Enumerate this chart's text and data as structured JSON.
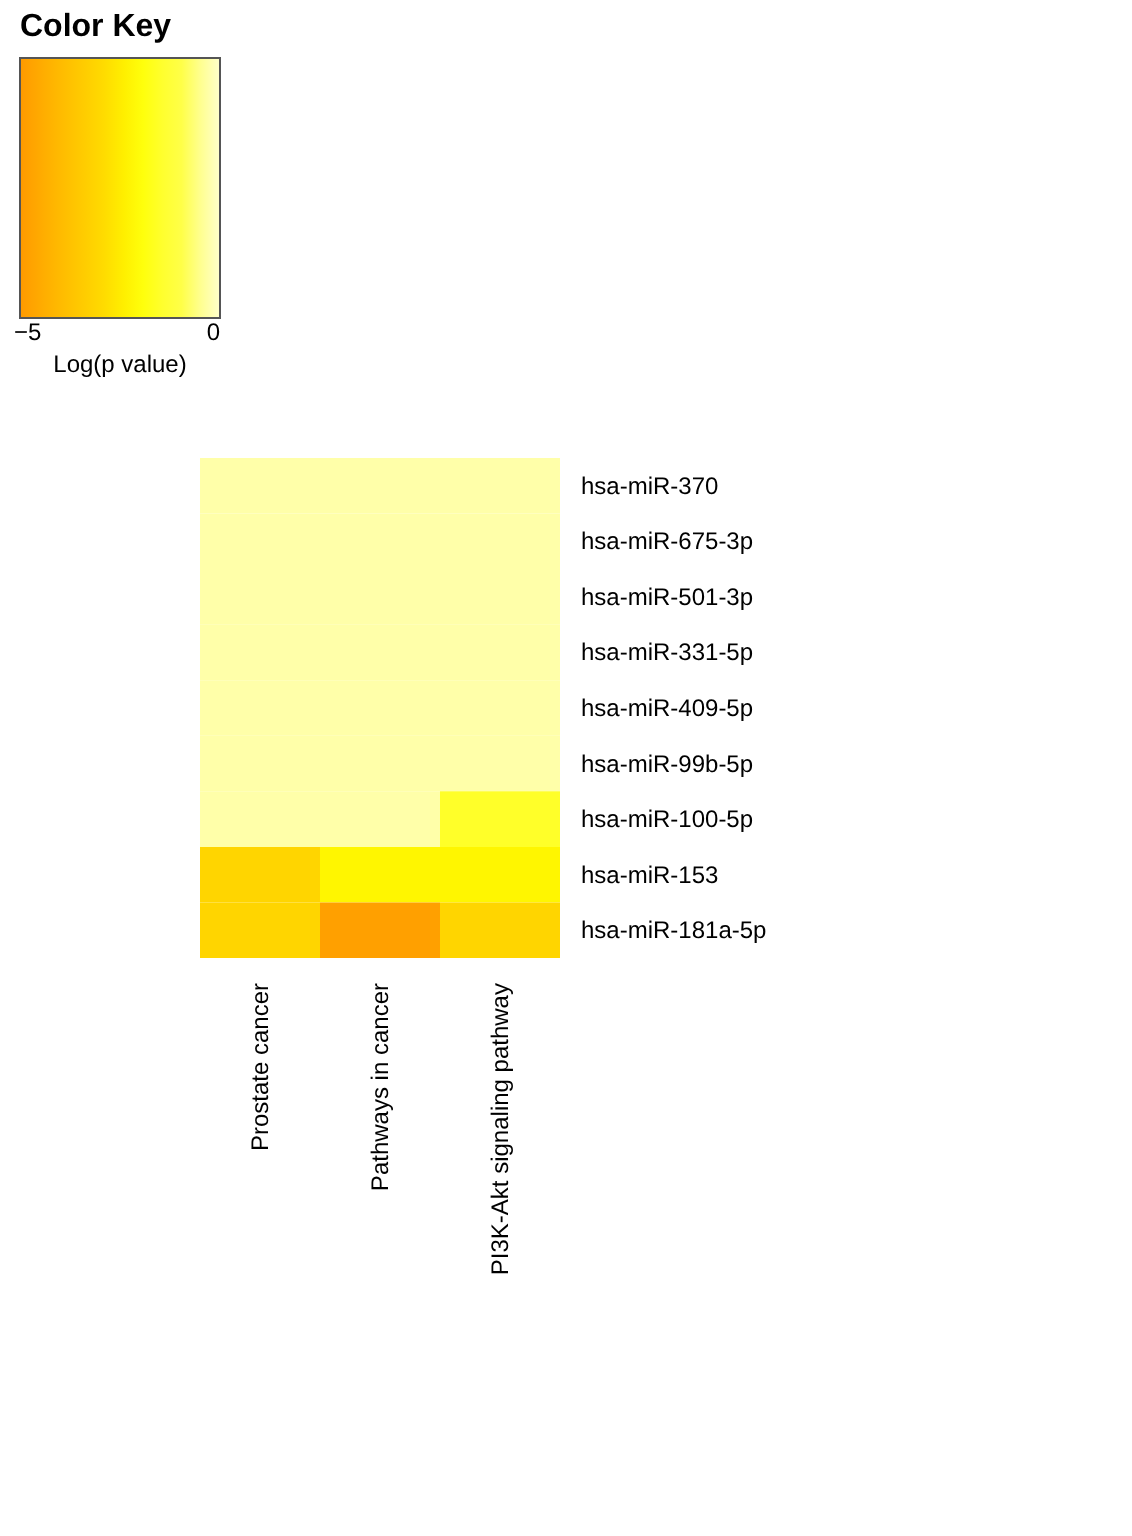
{
  "chart_data": {
    "type": "heatmap",
    "legend_title": "Color Key",
    "clabel": "Log(p value)",
    "clim": [
      -5.2,
      0
    ],
    "cticks": [
      -5,
      0
    ],
    "colors": [
      "#ff9900",
      "#ffbb00",
      "#ffd700",
      "#ffff00",
      "#ffff40",
      "#ffffcc"
    ],
    "categories": [
      "Prostate cancer",
      "Pathways in cancer",
      "PI3K-Akt signaling pathway"
    ],
    "y_categories": [
      "hsa-miR-370",
      "hsa-miR-675-3p",
      "hsa-miR-501-3p",
      "hsa-miR-331-5p",
      "hsa-miR-409-5p",
      "hsa-miR-99b-5p",
      "hsa-miR-100-5p",
      "hsa-miR-153",
      "hsa-miR-181a-5p"
    ],
    "cells": [
      [
        -0.3,
        -0.3,
        -0.3
      ],
      [
        -0.3,
        -0.3,
        -0.3
      ],
      [
        -0.3,
        -0.3,
        -0.3
      ],
      [
        -0.3,
        -0.3,
        -0.3
      ],
      [
        -0.3,
        -0.3,
        -0.3
      ],
      [
        -0.3,
        -0.3,
        -0.3
      ],
      [
        -0.3,
        -0.3,
        -1.6
      ],
      [
        -3.2,
        -2.3,
        -2.3
      ],
      [
        -3.2,
        -5.0,
        -3.2
      ]
    ]
  }
}
